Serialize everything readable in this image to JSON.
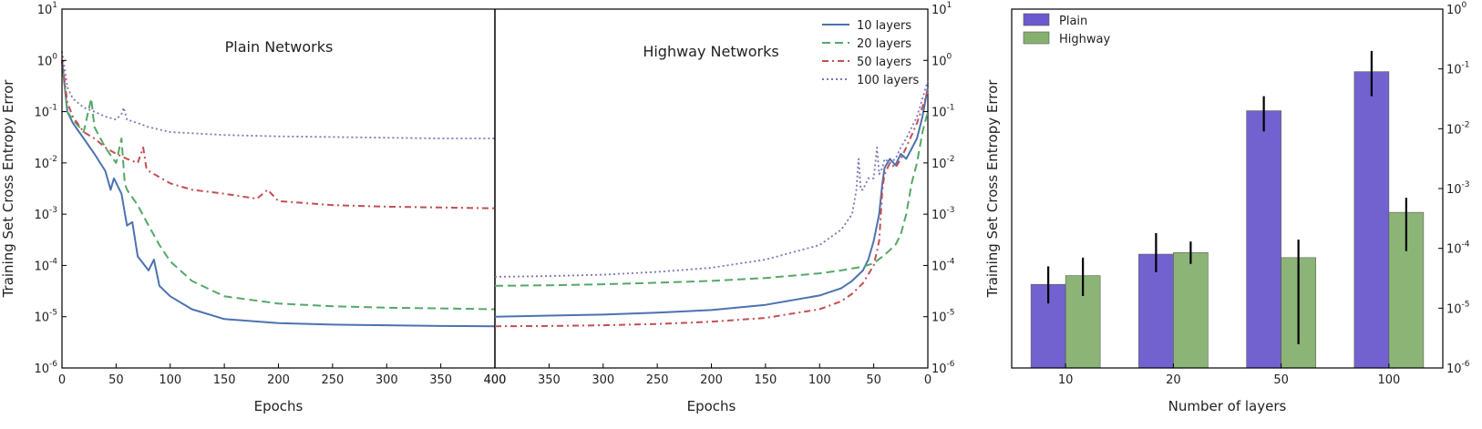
{
  "chart_data": [
    {
      "type": "line",
      "panel": "left-plain",
      "title": "Plain Networks",
      "xlabel": "Epochs",
      "ylabel": "Training Set Cross Entropy Error",
      "y_scale": "log",
      "ylim": [
        1e-06,
        10
      ],
      "xlim": [
        0,
        400
      ],
      "x_ticks": [
        "0",
        "50",
        "100",
        "150",
        "200",
        "250",
        "300",
        "350",
        "400"
      ],
      "y_ticks": [
        {
          "base": "10",
          "exp": "-6"
        },
        {
          "base": "10",
          "exp": "-5"
        },
        {
          "base": "10",
          "exp": "-4"
        },
        {
          "base": "10",
          "exp": "-3"
        },
        {
          "base": "10",
          "exp": "-2"
        },
        {
          "base": "10",
          "exp": "-1"
        },
        {
          "base": "10",
          "exp": "0"
        },
        {
          "base": "10",
          "exp": "1"
        }
      ],
      "series": [
        {
          "name": "10 layers",
          "color": "#4c72b0",
          "dash": "solid",
          "x": [
            0,
            5,
            10,
            20,
            30,
            40,
            45,
            48,
            55,
            60,
            65,
            70,
            80,
            85,
            90,
            100,
            120,
            150,
            200,
            250,
            300,
            350,
            400
          ],
          "y": [
            1.0,
            0.1,
            0.06,
            0.03,
            0.015,
            0.007,
            0.003,
            0.005,
            0.0025,
            0.0006,
            0.0007,
            0.00015,
            8e-05,
            0.00013,
            4e-05,
            2.5e-05,
            1.4e-05,
            9e-06,
            7.5e-06,
            7e-06,
            6.8e-06,
            6.6e-06,
            6.5e-06
          ]
        },
        {
          "name": "20 layers",
          "color": "#55a868",
          "dash": "dashed",
          "x": [
            0,
            5,
            10,
            20,
            27,
            30,
            40,
            50,
            55,
            58,
            60,
            70,
            80,
            90,
            100,
            120,
            150,
            200,
            250,
            300,
            350,
            400
          ],
          "y": [
            1.0,
            0.1,
            0.07,
            0.04,
            0.18,
            0.05,
            0.02,
            0.01,
            0.03,
            0.004,
            0.003,
            0.0015,
            0.0006,
            0.00025,
            0.00012,
            5e-05,
            2.5e-05,
            1.8e-05,
            1.6e-05,
            1.5e-05,
            1.45e-05,
            1.4e-05
          ]
        },
        {
          "name": "50 layers",
          "color": "#c44e52",
          "dash": "dashdot",
          "x": [
            0,
            5,
            10,
            20,
            30,
            40,
            50,
            60,
            70,
            75,
            78,
            80,
            100,
            120,
            150,
            180,
            190,
            200,
            250,
            300,
            350,
            400
          ],
          "y": [
            1.0,
            0.15,
            0.08,
            0.04,
            0.03,
            0.02,
            0.015,
            0.012,
            0.01,
            0.02,
            0.008,
            0.007,
            0.004,
            0.003,
            0.0025,
            0.002,
            0.003,
            0.0018,
            0.0015,
            0.0014,
            0.00135,
            0.0013
          ]
        },
        {
          "name": "100 layers",
          "color": "#8172b2",
          "dash": "dotted",
          "x": [
            0,
            5,
            10,
            20,
            30,
            40,
            50,
            55,
            57,
            60,
            70,
            80,
            100,
            150,
            200,
            250,
            300,
            350,
            400
          ],
          "y": [
            1.5,
            0.3,
            0.18,
            0.12,
            0.1,
            0.08,
            0.07,
            0.09,
            0.12,
            0.07,
            0.06,
            0.05,
            0.04,
            0.035,
            0.033,
            0.032,
            0.031,
            0.03,
            0.03
          ]
        }
      ]
    },
    {
      "type": "line",
      "panel": "middle-highway",
      "title": "Highway Networks",
      "xlabel": "Epochs",
      "ylabel": "",
      "y_scale": "log",
      "ylim": [
        1e-06,
        10
      ],
      "xlim": [
        400,
        0
      ],
      "x_ticks": [
        "400",
        "350",
        "300",
        "250",
        "200",
        "150",
        "100",
        "50",
        "0"
      ],
      "y_ticks_right": [
        {
          "base": "10",
          "exp": "-6"
        },
        {
          "base": "10",
          "exp": "-5"
        },
        {
          "base": "10",
          "exp": "-4"
        },
        {
          "base": "10",
          "exp": "-3"
        },
        {
          "base": "10",
          "exp": "-2"
        },
        {
          "base": "10",
          "exp": "-1"
        },
        {
          "base": "10",
          "exp": "0"
        },
        {
          "base": "10",
          "exp": "1"
        }
      ],
      "legend_position": "top-right",
      "series": [
        {
          "name": "10 layers",
          "color": "#4c72b0",
          "dash": "solid",
          "x": [
            400,
            350,
            300,
            250,
            200,
            150,
            100,
            80,
            70,
            60,
            55,
            50,
            45,
            42,
            40,
            35,
            30,
            25,
            20,
            10,
            5,
            0
          ],
          "y": [
            1e-05,
            1.05e-05,
            1.1e-05,
            1.2e-05,
            1.35e-05,
            1.7e-05,
            2.6e-05,
            3.6e-05,
            5e-05,
            8e-05,
            0.00013,
            0.0003,
            0.001,
            0.004,
            0.008,
            0.012,
            0.009,
            0.015,
            0.012,
            0.03,
            0.08,
            0.3
          ]
        },
        {
          "name": "20 layers",
          "color": "#55a868",
          "dash": "dashed",
          "x": [
            400,
            350,
            300,
            250,
            200,
            150,
            100,
            80,
            60,
            50,
            40,
            30,
            25,
            20,
            15,
            10,
            5,
            0
          ],
          "y": [
            4e-05,
            4.1e-05,
            4.3e-05,
            4.6e-05,
            5e-05,
            5.7e-05,
            7e-05,
            8e-05,
            9.5e-05,
            0.00011,
            0.00016,
            0.00025,
            0.0004,
            0.001,
            0.004,
            0.01,
            0.04,
            0.1
          ]
        },
        {
          "name": "50 layers",
          "color": "#c44e52",
          "dash": "dashdot",
          "x": [
            400,
            350,
            300,
            250,
            200,
            150,
            100,
            80,
            70,
            60,
            50,
            45,
            42,
            40,
            35,
            30,
            25,
            20,
            10,
            0
          ],
          "y": [
            6.5e-06,
            6.6e-06,
            6.8e-06,
            7.2e-06,
            8e-06,
            9.5e-06,
            1.4e-05,
            2e-05,
            2.8e-05,
            4.5e-05,
            0.0001,
            0.0003,
            0.003,
            0.006,
            0.01,
            0.008,
            0.012,
            0.02,
            0.06,
            0.25
          ]
        },
        {
          "name": "100 layers",
          "color": "#8172b2",
          "dash": "dotted",
          "x": [
            400,
            350,
            300,
            250,
            200,
            150,
            100,
            80,
            70,
            66,
            64,
            62,
            60,
            55,
            50,
            47,
            45,
            42,
            40,
            35,
            30,
            25,
            20,
            10,
            0
          ],
          "y": [
            6e-05,
            6.2e-05,
            6.6e-05,
            7.5e-05,
            9e-05,
            0.00013,
            0.00025,
            0.0005,
            0.001,
            0.003,
            0.012,
            0.003,
            0.003,
            0.005,
            0.005,
            0.02,
            0.006,
            0.008,
            0.012,
            0.01,
            0.012,
            0.02,
            0.03,
            0.08,
            0.4
          ]
        }
      ]
    },
    {
      "type": "bar",
      "panel": "right",
      "title": "",
      "xlabel": "Number of layers",
      "ylabel": "Training Set Cross Entropy Error",
      "y_scale": "log",
      "ylim": [
        1e-06,
        1
      ],
      "categories": [
        "10",
        "20",
        "50",
        "100"
      ],
      "y_ticks_right": [
        {
          "base": "10",
          "exp": "-6"
        },
        {
          "base": "10",
          "exp": "-5"
        },
        {
          "base": "10",
          "exp": "-4"
        },
        {
          "base": "10",
          "exp": "-3"
        },
        {
          "base": "10",
          "exp": "-2"
        },
        {
          "base": "10",
          "exp": "-1"
        },
        {
          "base": "10",
          "exp": "0"
        }
      ],
      "legend_position": "top-left",
      "series": [
        {
          "name": "Plain",
          "color": "#6a5acd",
          "values": [
            2.5e-05,
            8e-05,
            0.02,
            0.09
          ],
          "err_low": [
            1.2e-05,
            4e-05,
            0.009,
            0.035
          ],
          "err_high": [
            5e-05,
            0.00018,
            0.035,
            0.2
          ]
        },
        {
          "name": "Highway",
          "color": "#86b070",
          "values": [
            3.5e-05,
            8.5e-05,
            7e-05,
            0.0004
          ],
          "err_low": [
            1.6e-05,
            5.5e-05,
            2.5e-06,
            9e-05
          ],
          "err_high": [
            7e-05,
            0.00013,
            0.00014,
            0.0007
          ]
        }
      ]
    }
  ]
}
